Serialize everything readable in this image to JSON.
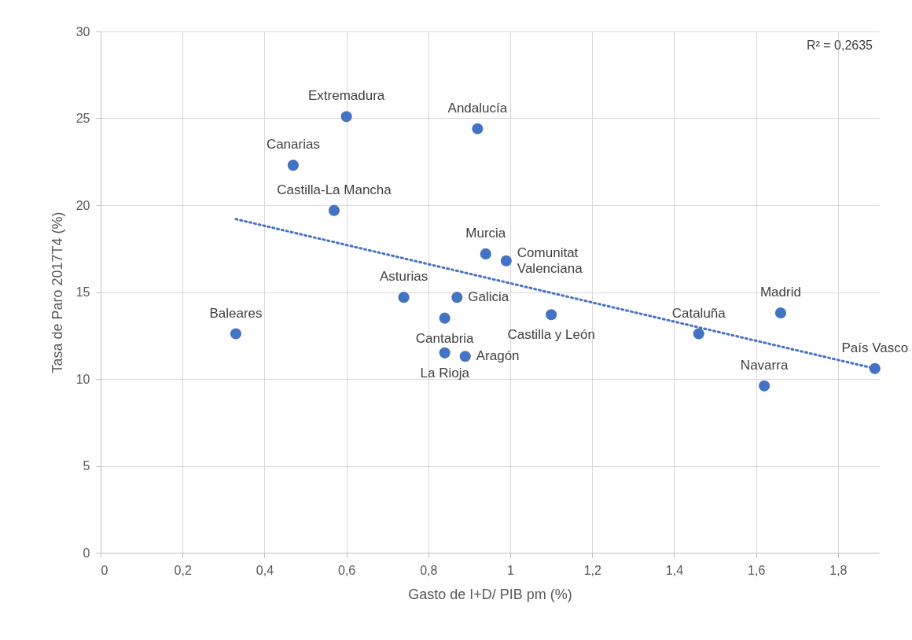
{
  "chart_data": {
    "type": "scatter",
    "xlabel": "Gasto de I+D/ PIB pm (%)",
    "ylabel": "Tasa de Paro 2017T4 (%)",
    "x": [
      0.33,
      0.47,
      0.57,
      0.6,
      0.74,
      0.84,
      0.84,
      0.87,
      0.89,
      0.92,
      0.94,
      0.99,
      1.1,
      1.46,
      1.62,
      1.66,
      1.89
    ],
    "series": [
      {
        "color": "#4472c4",
        "marker": "circle",
        "values": [
          12.6,
          22.3,
          19.7,
          25.1,
          14.7,
          13.5,
          11.5,
          14.7,
          11.3,
          24.4,
          17.2,
          16.8,
          13.7,
          12.6,
          9.6,
          13.8,
          10.6
        ]
      },
      {
        "type": "line",
        "color": "#4472c4",
        "line_style": "dotted",
        "x": [
          0.33,
          1.89
        ],
        "values": [
          19.2,
          10.6
        ]
      }
    ],
    "annotations": [
      {
        "text": "Baleares",
        "x": 0.33,
        "y": 12.6
      },
      {
        "text": "Canarias",
        "x": 0.47,
        "y": 22.3
      },
      {
        "text": "Castilla-La Mancha",
        "x": 0.57,
        "y": 19.7
      },
      {
        "text": "Extremadura",
        "x": 0.6,
        "y": 25.1
      },
      {
        "text": "Asturias",
        "x": 0.74,
        "y": 14.7
      },
      {
        "text": "Cantabria",
        "x": 0.84,
        "y": 13.5
      },
      {
        "text": "La Rioja",
        "x": 0.84,
        "y": 11.5
      },
      {
        "text": "Galicia",
        "x": 0.87,
        "y": 14.7
      },
      {
        "text": "Aragón",
        "x": 0.89,
        "y": 11.3
      },
      {
        "text": "Andalucía",
        "x": 0.92,
        "y": 24.4
      },
      {
        "text": "Murcia",
        "x": 0.94,
        "y": 17.2
      },
      {
        "text": "Comunitat Valenciana",
        "x": 0.99,
        "y": 16.8
      },
      {
        "text": "Castilla y León",
        "x": 1.1,
        "y": 13.7
      },
      {
        "text": "Cataluña",
        "x": 1.46,
        "y": 12.6
      },
      {
        "text": "Navarra",
        "x": 1.62,
        "y": 9.6
      },
      {
        "text": "Madrid",
        "x": 1.66,
        "y": 13.8
      },
      {
        "text": "País Vasco",
        "x": 1.89,
        "y": 10.6
      },
      "R² = 0,2635"
    ],
    "xlim": [
      0,
      1.9
    ],
    "ylim": [
      0,
      30
    ],
    "xticks": [
      0,
      {
        "value": 0.2,
        "label": "0,2"
      },
      {
        "value": 0.4,
        "label": "0,4"
      },
      {
        "value": 0.6,
        "label": "0,6"
      },
      {
        "value": 0.8,
        "label": "0,8"
      },
      1,
      {
        "value": 1.2,
        "label": "1,2"
      },
      {
        "value": 1.4,
        "label": "1,4"
      },
      {
        "value": 1.6,
        "label": "1,6"
      },
      {
        "value": 1.8,
        "label": "1,8"
      }
    ],
    "yticks": [
      0,
      5,
      10,
      15,
      20,
      25,
      30
    ],
    "grid": true
  }
}
